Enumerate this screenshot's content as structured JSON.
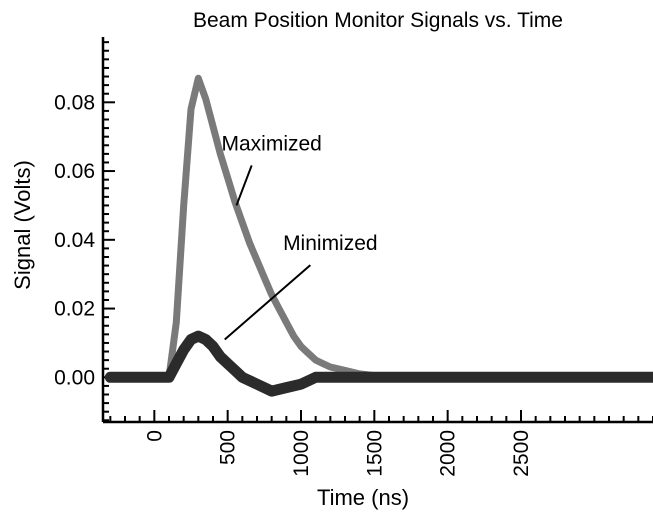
{
  "chart_data": {
    "type": "line",
    "title": "Beam Position Monitor Signals vs. Time",
    "xlabel": "Time (ns)",
    "ylabel": "Signal (Volts)",
    "xlim": [
      -350,
      3400
    ],
    "ylim": [
      -0.013,
      0.099
    ],
    "xticks": [
      0,
      500,
      1000,
      1500,
      2000,
      2500
    ],
    "xtick_labels": [
      "0",
      "500",
      "1000",
      "1500",
      "2000",
      "2500"
    ],
    "yticks": [
      0.0,
      0.02,
      0.04,
      0.06,
      0.08
    ],
    "ytick_labels": [
      "0.00",
      "0.02",
      "0.04",
      "0.06",
      "0.08"
    ],
    "grid": false,
    "legend": "none",
    "series": [
      {
        "name": "Maximized",
        "color": "#7a7a7a",
        "x": [
          -300,
          100,
          150,
          200,
          250,
          300,
          350,
          400,
          450,
          500,
          550,
          600,
          650,
          700,
          750,
          800,
          850,
          900,
          950,
          1000,
          1050,
          1100,
          1150,
          1200,
          1300,
          1400,
          1600,
          2000,
          2500,
          3000,
          3400
        ],
        "y": [
          0.0,
          0.0,
          0.016,
          0.05,
          0.078,
          0.087,
          0.081,
          0.073,
          0.065,
          0.058,
          0.051,
          0.045,
          0.039,
          0.034,
          0.029,
          0.024,
          0.02,
          0.016,
          0.012,
          0.009,
          0.007,
          0.005,
          0.004,
          0.003,
          0.002,
          0.001,
          0.0,
          0.0,
          0.0,
          0.0,
          0.0
        ]
      },
      {
        "name": "Minimized",
        "color": "#2b2b2b",
        "x": [
          -300,
          0,
          100,
          150,
          200,
          250,
          300,
          350,
          400,
          450,
          500,
          550,
          600,
          700,
          800,
          900,
          1000,
          1100,
          1200,
          1400,
          1600,
          2000,
          2500,
          3000,
          3400
        ],
        "y": [
          0.0,
          0.0,
          0.0,
          0.004,
          0.008,
          0.011,
          0.012,
          0.011,
          0.009,
          0.006,
          0.004,
          0.002,
          0.0,
          -0.002,
          -0.004,
          -0.003,
          -0.002,
          0.0,
          0.0,
          0.0,
          0.0,
          0.0,
          0.0,
          0.0,
          0.0
        ]
      }
    ],
    "annotations": [
      {
        "text": "Maximized",
        "x": 800,
        "y": 0.066,
        "arrow_to": [
          560,
          0.05
        ]
      },
      {
        "text": "Minimized",
        "x": 1200,
        "y": 0.037,
        "arrow_to": [
          480,
          0.011
        ]
      }
    ]
  }
}
